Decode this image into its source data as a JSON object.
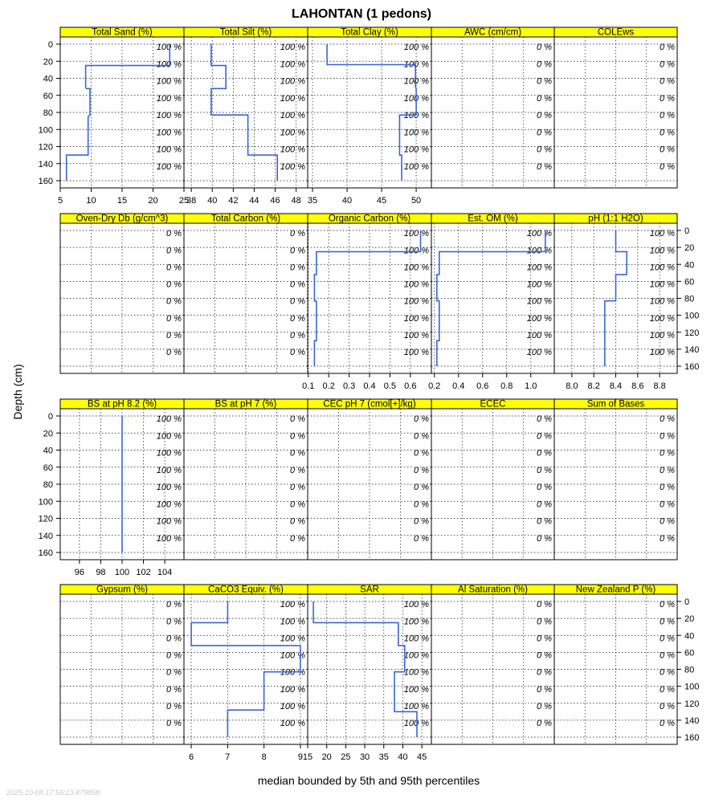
{
  "title": "LAHONTAN (1 pedons)",
  "ylabel": "Depth (cm)",
  "xlabel": "median bounded by 5th and 95th percentiles",
  "timestamp": "2025-10-08 17:56:13.879858",
  "colors": {
    "strip": "#ffff00",
    "line": "#3a65d6",
    "grid": "#000000",
    "stamp": "#c8c8c8"
  },
  "y_axis": {
    "range": [
      0,
      160
    ],
    "ticks": [
      0,
      20,
      40,
      60,
      80,
      100,
      120,
      140,
      160
    ],
    "pct_depths": [
      3,
      23,
      43,
      63,
      83,
      103,
      123,
      143
    ]
  },
  "chart_data": [
    {
      "type": "line",
      "title": "Total Sand (%)",
      "xlim": [
        5,
        25
      ],
      "xticks": [
        5,
        10,
        15,
        20,
        25
      ],
      "pct": "100 %",
      "series": [
        {
          "name": "median",
          "depth": [
            0,
            25,
            25,
            50,
            52,
            52,
            83,
            85,
            85,
            128,
            130,
            130,
            160
          ],
          "values": [
            22.7,
            22.7,
            9.1,
            9.1,
            9.2,
            9.8,
            9.8,
            9.5,
            9.5,
            9.5,
            9.5,
            6.0,
            6.0
          ]
        }
      ]
    },
    {
      "type": "line",
      "title": "Total Silt (%)",
      "xlim": [
        37.3,
        49.1
      ],
      "xticks": [
        38,
        40,
        42,
        44,
        46,
        48
      ],
      "pct": "100 %",
      "series": [
        {
          "name": "median",
          "depth": [
            0,
            25,
            25,
            52,
            52,
            83,
            83,
            130,
            130,
            160
          ],
          "values": [
            39.9,
            39.9,
            41.3,
            41.3,
            39.9,
            39.9,
            43.4,
            43.4,
            46.2,
            46.2
          ]
        }
      ]
    },
    {
      "type": "line",
      "title": "Total Clay (%)",
      "xlim": [
        34.3,
        52.2
      ],
      "xticks": [
        35,
        40,
        45,
        50
      ],
      "pct": "100 %",
      "series": [
        {
          "name": "median",
          "depth": [
            0,
            24,
            24,
            50,
            52,
            83,
            83,
            130,
            130,
            160
          ],
          "values": [
            37.1,
            37.1,
            49.9,
            49.9,
            50.0,
            50.0,
            47.6,
            47.6,
            47.9,
            47.9
          ]
        }
      ]
    },
    {
      "type": "line",
      "title": "AWC (cm/cm)",
      "pct": "0 %",
      "series": []
    },
    {
      "type": "line",
      "title": "COLEws",
      "pct": "0 %",
      "series": []
    },
    {
      "type": "line",
      "title": "Oven-Dry Db (g/cm^3)",
      "pct": "0 %",
      "series": []
    },
    {
      "type": "line",
      "title": "Total Carbon (%)",
      "pct": "0 %",
      "series": []
    },
    {
      "type": "line",
      "title": "Organic Carbon (%)",
      "xlim": [
        0.097,
        0.703
      ],
      "xticks": [
        0.1,
        0.2,
        0.3,
        0.4,
        0.5,
        0.6
      ],
      "xtick_labels": [
        "0.1",
        "0.2",
        "0.3",
        "0.4",
        "0.5",
        "0.6"
      ],
      "pct": "100 %",
      "series": [
        {
          "name": "median",
          "depth": [
            0,
            25,
            25,
            52,
            52,
            83,
            83,
            130,
            130,
            160
          ],
          "values": [
            0.65,
            0.65,
            0.14,
            0.14,
            0.13,
            0.13,
            0.14,
            0.14,
            0.13,
            0.13
          ]
        }
      ]
    },
    {
      "type": "line",
      "title": "Est. OM (%)",
      "xlim": [
        0.175,
        1.195
      ],
      "xticks": [
        0.2,
        0.4,
        0.6,
        0.8,
        1.0
      ],
      "xtick_labels": [
        "0.2",
        "0.4",
        "0.6",
        "0.8",
        "1.0"
      ],
      "pct": "100 %",
      "series": [
        {
          "name": "median",
          "depth": [
            0,
            25,
            25,
            52,
            52,
            83,
            83,
            130,
            130,
            160
          ],
          "values": [
            1.12,
            1.12,
            0.24,
            0.24,
            0.22,
            0.22,
            0.24,
            0.24,
            0.22,
            0.22
          ]
        }
      ]
    },
    {
      "type": "line",
      "title": "pH (1:1 H2O)",
      "xlim": [
        7.84,
        8.96
      ],
      "xticks": [
        8.0,
        8.2,
        8.4,
        8.6,
        8.8
      ],
      "xtick_labels": [
        "8.0",
        "8.2",
        "8.4",
        "8.6",
        "8.8"
      ],
      "pct": "100 %",
      "series": [
        {
          "name": "median",
          "depth": [
            0,
            25,
            25,
            52,
            52,
            83,
            83,
            160
          ],
          "values": [
            8.4,
            8.4,
            8.5,
            8.5,
            8.4,
            8.4,
            8.3,
            8.3
          ]
        }
      ]
    },
    {
      "type": "line",
      "title": "BS at pH 8.2 (%)",
      "xlim": [
        94.2,
        105.8
      ],
      "xticks": [
        96,
        98,
        100,
        102,
        104
      ],
      "pct": "100 %",
      "series": [
        {
          "name": "median",
          "depth": [
            0,
            160
          ],
          "values": [
            100,
            100
          ]
        }
      ]
    },
    {
      "type": "line",
      "title": "BS at pH 7 (%)",
      "pct": "0 %",
      "series": []
    },
    {
      "type": "line",
      "title": "CEC pH 7 (cmol[+]/kg)",
      "pct": "0 %",
      "series": []
    },
    {
      "type": "line",
      "title": "ECEC",
      "pct": "0 %",
      "series": []
    },
    {
      "type": "line",
      "title": "Sum of Bases",
      "pct": "0 %",
      "series": []
    },
    {
      "type": "line",
      "title": "Gypsum (%)",
      "pct": "0 %",
      "series": []
    },
    {
      "type": "line",
      "title": "CaCO3 Equiv. (%)",
      "xlim": [
        5.8,
        9.2
      ],
      "xticks": [
        6,
        7,
        8,
        9
      ],
      "pct": "100 %",
      "series": [
        {
          "name": "median",
          "depth": [
            0,
            25,
            25,
            52,
            52,
            83,
            83,
            128,
            128,
            160
          ],
          "values": [
            7,
            7,
            6,
            6,
            9,
            9,
            8,
            8,
            7,
            7
          ]
        }
      ]
    },
    {
      "type": "line",
      "title": "SAR",
      "xlim": [
        15,
        47.5
      ],
      "xticks": [
        15,
        20,
        25,
        30,
        35,
        40,
        45
      ],
      "pct": "100 %",
      "series": [
        {
          "name": "median",
          "depth": [
            0,
            25,
            25,
            52,
            52,
            83,
            83,
            130,
            130,
            160
          ],
          "values": [
            16.5,
            16.5,
            38.8,
            38.8,
            40.5,
            40.5,
            37.8,
            37.8,
            43.7,
            43.7
          ]
        }
      ]
    },
    {
      "type": "line",
      "title": "Al Saturation (%)",
      "pct": "0 %",
      "series": []
    },
    {
      "type": "line",
      "title": "New Zealand P (%)",
      "pct": "0 %",
      "series": []
    }
  ]
}
